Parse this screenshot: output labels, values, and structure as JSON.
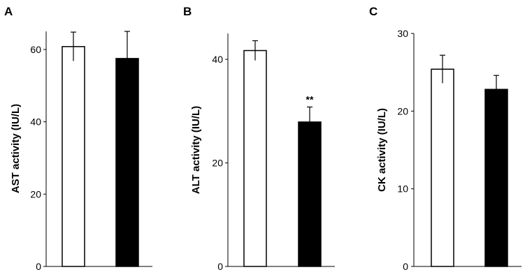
{
  "chart_data": [
    {
      "type": "bar",
      "panel_label": "A",
      "title": "",
      "xlabel": "",
      "ylabel": "AST activity (IU/L)",
      "ylim": [
        0,
        65
      ],
      "yticks": [
        0,
        20,
        40,
        60
      ],
      "grid": false,
      "categories": [
        "",
        ""
      ],
      "values": [
        60.8,
        57.5
      ],
      "errors": [
        4.0,
        8.0
      ],
      "bar_colors": [
        "#ffffff",
        "#000000"
      ],
      "annotations": [
        "",
        ""
      ]
    },
    {
      "type": "bar",
      "panel_label": "B",
      "title": "",
      "xlabel": "",
      "ylabel": "ALT activity (IU/L)",
      "ylim": [
        0,
        45
      ],
      "yticks": [
        0,
        20,
        40
      ],
      "grid": false,
      "categories": [
        "",
        ""
      ],
      "values": [
        41.7,
        27.9
      ],
      "errors": [
        1.9,
        2.9
      ],
      "bar_colors": [
        "#ffffff",
        "#000000"
      ],
      "annotations": [
        "",
        "**"
      ]
    },
    {
      "type": "bar",
      "panel_label": "C",
      "title": "",
      "xlabel": "",
      "ylabel": "CK activity (IU/L)",
      "ylim": [
        0,
        30
      ],
      "yticks": [
        0,
        10,
        20,
        30
      ],
      "grid": false,
      "categories": [
        "",
        ""
      ],
      "values": [
        25.4,
        22.8
      ],
      "errors": [
        1.8,
        1.8
      ],
      "bar_colors": [
        "#ffffff",
        "#000000"
      ],
      "annotations": [
        "",
        ""
      ]
    }
  ]
}
